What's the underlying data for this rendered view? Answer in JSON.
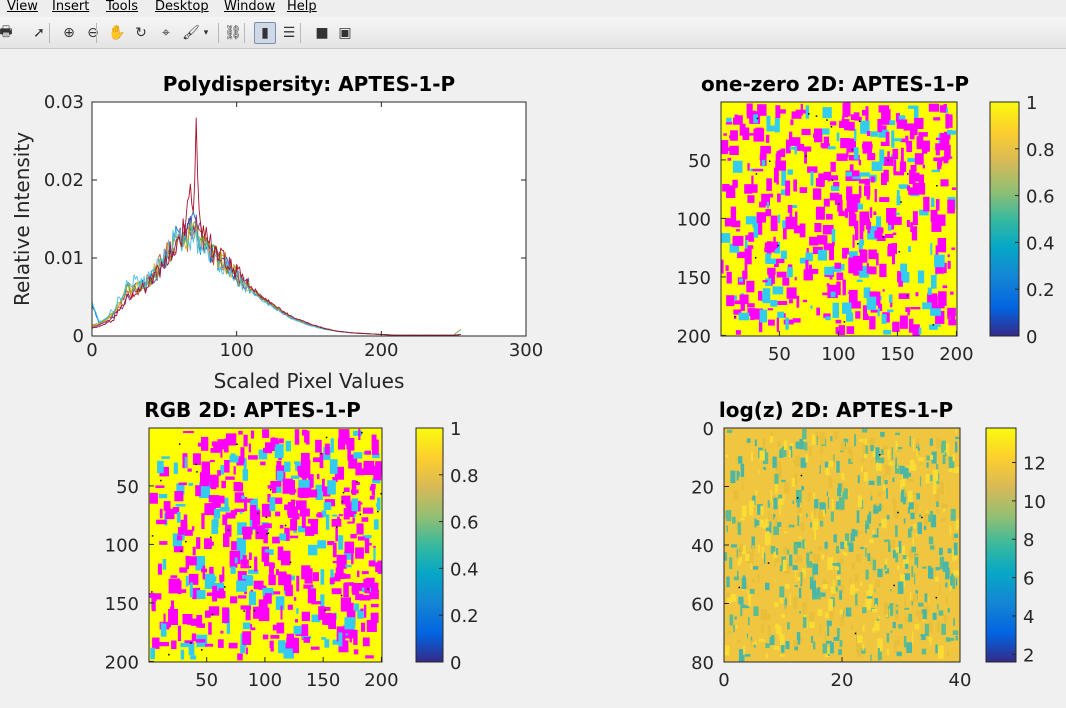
{
  "menubar": {
    "items": [
      {
        "label": "View",
        "x": 7
      },
      {
        "label": "Insert",
        "x": 52
      },
      {
        "label": "Tools",
        "x": 106
      },
      {
        "label": "Desktop",
        "x": 155
      },
      {
        "label": "Window",
        "x": 224
      },
      {
        "label": "Help",
        "x": 287
      }
    ]
  },
  "toolbar": {
    "icons": [
      "print-icon",
      "select-arrow-icon",
      "zoom-in-icon",
      "zoom-out-icon",
      "pan-hand-icon",
      "rotate-3d-icon",
      "data-cursor-icon",
      "brush-icon",
      "brush-dropdown-icon",
      "link-plot-icon",
      "colorbar-toggle-icon",
      "legend-toggle-icon",
      "hide-plot-tools-icon",
      "show-plot-tools-icon"
    ]
  },
  "chart_data": [
    {
      "type": "line",
      "title": "Polydispersity: APTES-1-P",
      "xlabel": "Scaled Pixel Values",
      "ylabel": "Relative Intensity",
      "xlim": [
        0,
        300
      ],
      "ylim": [
        0,
        0.03
      ],
      "xticks": [
        "0",
        "100",
        "200",
        "300"
      ],
      "yticks": [
        "0",
        "0.01",
        "0.02",
        "0.03"
      ],
      "grid": false,
      "series": [
        {
          "color": "#0072bd",
          "x": [
            0,
            5,
            10,
            15,
            20,
            25,
            30,
            35,
            40,
            45,
            50,
            55,
            60,
            65,
            70,
            75,
            80,
            85,
            90,
            95,
            100,
            110,
            120,
            130,
            140,
            150,
            160,
            170,
            180,
            190,
            200,
            210,
            220,
            230,
            240,
            250,
            255
          ],
          "values": [
            0.004,
            0.0016,
            0.0022,
            0.003,
            0.0046,
            0.0062,
            0.0064,
            0.0066,
            0.0072,
            0.0084,
            0.0098,
            0.0116,
            0.0134,
            0.0128,
            0.0142,
            0.0118,
            0.0108,
            0.0101,
            0.0094,
            0.0086,
            0.0076,
            0.0059,
            0.0044,
            0.0031,
            0.0021,
            0.0014,
            0.0009,
            0.0006,
            0.0004,
            0.0003,
            0.0002,
            0.0001,
            0.0001,
            0.0001,
            0.0001,
            0.0001,
            0.0002
          ]
        },
        {
          "color": "#d95319",
          "x": [
            0,
            5,
            10,
            15,
            20,
            25,
            30,
            35,
            40,
            45,
            50,
            55,
            60,
            65,
            70,
            75,
            80,
            85,
            90,
            95,
            100,
            110,
            120,
            130,
            140,
            150,
            160,
            170,
            180,
            190,
            200,
            210,
            220,
            230,
            240,
            250,
            255
          ],
          "values": [
            0.0012,
            0.0015,
            0.002,
            0.0028,
            0.0042,
            0.0056,
            0.0058,
            0.0064,
            0.0072,
            0.0086,
            0.0102,
            0.0118,
            0.0124,
            0.0122,
            0.0135,
            0.0126,
            0.011,
            0.0104,
            0.0098,
            0.0089,
            0.0079,
            0.006,
            0.0045,
            0.0032,
            0.0022,
            0.0015,
            0.001,
            0.0006,
            0.0004,
            0.0003,
            0.0002,
            0.0001,
            0.0001,
            0.0001,
            0.0001,
            0.0001,
            0.0002
          ]
        },
        {
          "color": "#edb120",
          "x": [
            0,
            5,
            10,
            15,
            20,
            25,
            30,
            35,
            40,
            45,
            50,
            55,
            60,
            65,
            70,
            75,
            80,
            85,
            90,
            95,
            100,
            110,
            120,
            130,
            140,
            150,
            160,
            170,
            180,
            190,
            200,
            210,
            220,
            230,
            240,
            250,
            255
          ],
          "values": [
            0.0013,
            0.0016,
            0.0021,
            0.0029,
            0.0044,
            0.006,
            0.006,
            0.0066,
            0.0074,
            0.0088,
            0.0101,
            0.0114,
            0.013,
            0.0124,
            0.0131,
            0.0121,
            0.0112,
            0.0103,
            0.0096,
            0.0088,
            0.0078,
            0.0061,
            0.0046,
            0.0033,
            0.0022,
            0.0015,
            0.001,
            0.0006,
            0.0004,
            0.0003,
            0.0002,
            0.0001,
            0.0001,
            0.0001,
            0.0001,
            0.0001,
            0.0002
          ]
        },
        {
          "color": "#7e2f8e",
          "x": [
            0,
            5,
            10,
            15,
            20,
            25,
            30,
            35,
            40,
            45,
            50,
            55,
            60,
            65,
            70,
            75,
            80,
            85,
            90,
            95,
            100,
            110,
            120,
            130,
            140,
            150,
            160,
            170,
            180,
            190,
            200,
            210,
            220,
            230,
            240,
            250,
            255
          ],
          "values": [
            0.0011,
            0.0014,
            0.0018,
            0.0024,
            0.0036,
            0.0052,
            0.0054,
            0.0062,
            0.007,
            0.0082,
            0.0096,
            0.0112,
            0.0128,
            0.0132,
            0.0148,
            0.0129,
            0.0114,
            0.0106,
            0.0099,
            0.009,
            0.008,
            0.0062,
            0.0046,
            0.0033,
            0.0023,
            0.0016,
            0.001,
            0.0006,
            0.0004,
            0.0003,
            0.0002,
            0.0001,
            0.0001,
            0.0001,
            0.0001,
            0.0001,
            0.0002
          ]
        },
        {
          "color": "#77ac30",
          "x": [
            0,
            5,
            10,
            15,
            20,
            25,
            30,
            35,
            40,
            45,
            50,
            55,
            60,
            65,
            70,
            75,
            80,
            85,
            90,
            95,
            100,
            110,
            120,
            130,
            140,
            150,
            160,
            170,
            180,
            190,
            200,
            210,
            220,
            230,
            240,
            250,
            255
          ],
          "values": [
            0.0014,
            0.0016,
            0.0022,
            0.003,
            0.0045,
            0.006,
            0.0061,
            0.0066,
            0.0073,
            0.0085,
            0.0099,
            0.0113,
            0.0127,
            0.0125,
            0.0133,
            0.0122,
            0.0111,
            0.0104,
            0.0097,
            0.0088,
            0.0078,
            0.0061,
            0.0045,
            0.0033,
            0.0022,
            0.0015,
            0.001,
            0.0006,
            0.0004,
            0.0003,
            0.0002,
            0.0001,
            0.0001,
            0.0001,
            0.0001,
            0.0001,
            0.0009
          ]
        },
        {
          "color": "#4dbeee",
          "x": [
            0,
            5,
            10,
            15,
            20,
            25,
            30,
            35,
            40,
            45,
            50,
            55,
            60,
            65,
            70,
            75,
            80,
            85,
            90,
            95,
            100,
            110,
            120,
            130,
            140,
            150,
            160,
            170,
            180,
            190,
            200,
            210,
            220,
            230,
            240,
            250,
            255
          ],
          "values": [
            0.0045,
            0.0018,
            0.0024,
            0.0034,
            0.0052,
            0.0068,
            0.007,
            0.0066,
            0.0078,
            0.0086,
            0.01,
            0.0119,
            0.0128,
            0.0118,
            0.0128,
            0.0116,
            0.0106,
            0.0099,
            0.0092,
            0.0085,
            0.0075,
            0.0058,
            0.0043,
            0.0031,
            0.0021,
            0.0014,
            0.0009,
            0.0006,
            0.0004,
            0.0003,
            0.0002,
            0.0001,
            0.0001,
            0.0001,
            0.0001,
            0.0001,
            0.0002
          ]
        },
        {
          "color": "#a2142f",
          "x": [
            0,
            5,
            10,
            15,
            20,
            25,
            30,
            35,
            40,
            45,
            50,
            55,
            60,
            65,
            68,
            70,
            72,
            75,
            80,
            85,
            90,
            95,
            100,
            110,
            120,
            130,
            140,
            150,
            160,
            170,
            180,
            190,
            200,
            210,
            220,
            230,
            240,
            250,
            255
          ],
          "values": [
            0.001,
            0.0012,
            0.0016,
            0.0022,
            0.0034,
            0.0048,
            0.0052,
            0.006,
            0.0068,
            0.008,
            0.0095,
            0.011,
            0.0128,
            0.0135,
            0.021,
            0.0148,
            0.0255,
            0.0132,
            0.012,
            0.011,
            0.0102,
            0.0092,
            0.0082,
            0.0063,
            0.0047,
            0.0034,
            0.0023,
            0.0016,
            0.001,
            0.0006,
            0.0004,
            0.0003,
            0.0002,
            0.0001,
            0.0001,
            0.0001,
            0.0001,
            0.0001,
            0.0002
          ]
        }
      ]
    },
    {
      "type": "heatmap",
      "title": "one-zero 2D:  APTES-1-P",
      "xticks": [
        "50",
        "100",
        "150",
        "200"
      ],
      "yticks": [
        "50",
        "100",
        "150",
        "200"
      ],
      "colorbar_ticks": [
        "0",
        "0.2",
        "0.4",
        "0.6",
        "0.8",
        "1"
      ],
      "clim": [
        0,
        1
      ],
      "colors": {
        "background": "#ffff00",
        "spots": [
          "#ff00ff",
          "#33ccee",
          "#ff00ff",
          "#ff00ff"
        ]
      }
    },
    {
      "type": "heatmap",
      "title": "RGB 2D:  APTES-1-P",
      "xticks": [
        "50",
        "100",
        "150",
        "200"
      ],
      "yticks": [
        "50",
        "100",
        "150",
        "200"
      ],
      "colorbar_ticks": [
        "0",
        "0.2",
        "0.4",
        "0.6",
        "0.8",
        "1"
      ],
      "clim": [
        0,
        1
      ],
      "colors": {
        "background": "#ffff00",
        "spots": [
          "#ff00ff",
          "#33ccee",
          "#ff00ff",
          "#ff00ff"
        ]
      }
    },
    {
      "type": "heatmap",
      "title": "log(z) 2D:  APTES-1-P",
      "xticks": [
        "0",
        "20",
        "40"
      ],
      "yticks": [
        "0",
        "20",
        "40",
        "60",
        "80"
      ],
      "colorbar_ticks": [
        "2",
        "4",
        "6",
        "8",
        "10",
        "12"
      ],
      "clim": [
        1.6,
        13.8
      ],
      "colors": {
        "background": "#f0c641",
        "spots": [
          "#4ab6a6",
          "#e8bf3a",
          "#fadc35",
          "#5fbc90"
        ]
      }
    }
  ]
}
